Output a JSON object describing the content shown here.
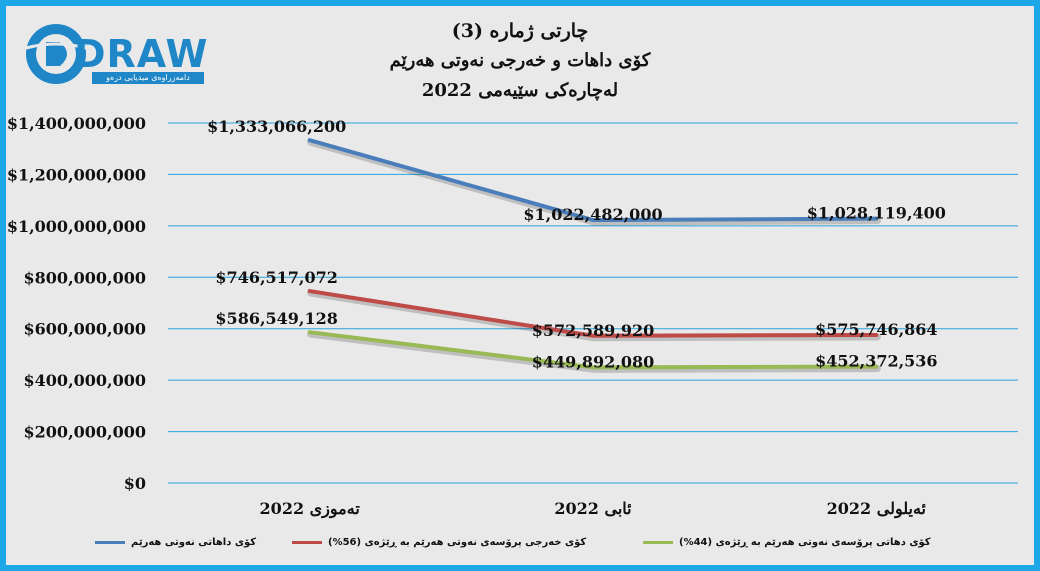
{
  "logo": {
    "word": "DRAW",
    "subtitle": "دامەزراوەی میدیایی درەو"
  },
  "chart_data": {
    "type": "line",
    "title_lines": [
      "چارتی ژمارە (3)",
      "کۆی داهات و خەرجی نەوتی هەرێم",
      "لەچارەکی سێیەمی 2022"
    ],
    "categories": [
      "تەموزی 2022",
      "ئابی 2022",
      "ئەیلولی 2022"
    ],
    "ylim": [
      0,
      1400000000
    ],
    "y_ticks": [
      {
        "value": 0,
        "label": "$0"
      },
      {
        "value": 200000000,
        "label": "$200,000,000"
      },
      {
        "value": 400000000,
        "label": "$400,000,000"
      },
      {
        "value": 600000000,
        "label": "$600,000,000"
      },
      {
        "value": 800000000,
        "label": "$800,000,000"
      },
      {
        "value": 1000000000,
        "label": "$1,000,000,000"
      },
      {
        "value": 1200000000,
        "label": "$1,200,000,000"
      },
      {
        "value": 1400000000,
        "label": "$1,400,000,000"
      }
    ],
    "grid": true,
    "legend_position": "bottom",
    "series": [
      {
        "name": "کۆی داهاتی نەوتی هەرێم",
        "color": "#4a7ebb",
        "values": [
          1333066200,
          1022482000,
          1028119400
        ],
        "labels": [
          "$1,333,066,200",
          "$1,022,482,000",
          "$1,028,119,400"
        ]
      },
      {
        "name": "کۆی خەرجی پرۆسەی نەوتی هەرێم بە ڕێژەی (56%)",
        "color": "#be4b48",
        "values": [
          746517072,
          572589920,
          575746864
        ],
        "labels": [
          "$746,517,072",
          "$572,589,920",
          "$575,746,864"
        ]
      },
      {
        "name": "کۆی دهاتی پرۆسەی نەوتی هەرێم بە ڕێژەی (44%)",
        "color": "#98b954",
        "values": [
          586549128,
          449892080,
          452372536
        ],
        "labels": [
          "$586,549,128",
          "$449,892,080",
          "$452,372,536"
        ]
      }
    ]
  }
}
